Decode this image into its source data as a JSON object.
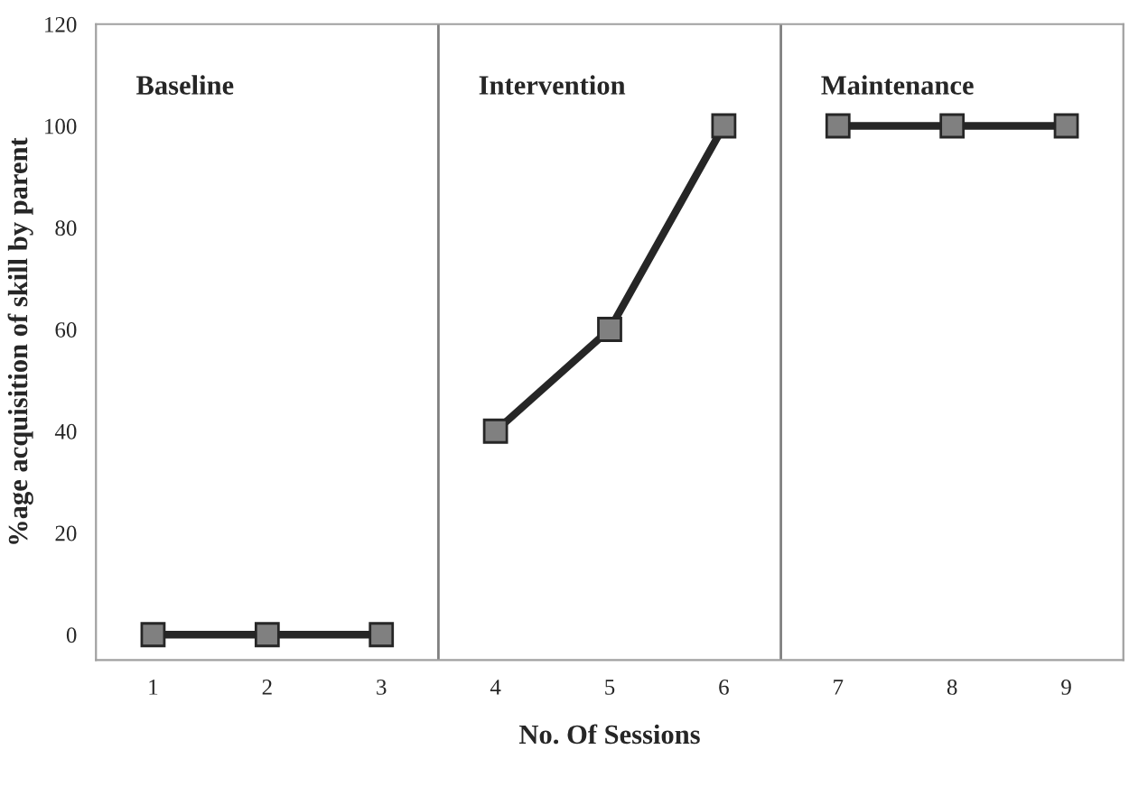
{
  "chart_data": {
    "type": "line",
    "xlabel": "No. Of Sessions",
    "ylabel": "%age acquisition of skill by parent",
    "series": [
      {
        "x": [
          1,
          2,
          3
        ],
        "values": [
          0,
          0,
          0
        ],
        "color": "#262626"
      },
      {
        "x": [
          4,
          5,
          6
        ],
        "values": [
          40,
          60,
          100
        ],
        "color": "#262626"
      },
      {
        "x": [
          7,
          8,
          9
        ],
        "values": [
          100,
          100,
          100
        ],
        "color": "#262626"
      }
    ],
    "xlim": [
      0.5,
      9.5
    ],
    "xticks": [
      1,
      2,
      3,
      4,
      5,
      6,
      7,
      8,
      9
    ],
    "ylim": [
      -5,
      120
    ],
    "yticks": [
      0,
      20,
      40,
      60,
      80,
      100,
      120
    ],
    "ref_lines": [
      {
        "axis": "x",
        "value": 3.5,
        "color": "#808080"
      },
      {
        "axis": "x",
        "value": 6.5,
        "color": "#808080"
      }
    ],
    "annotations": [
      "Baseline",
      "Intervention",
      "Maintenance"
    ],
    "marker": "square",
    "line_style": "solid",
    "grid": false,
    "legend": false
  }
}
